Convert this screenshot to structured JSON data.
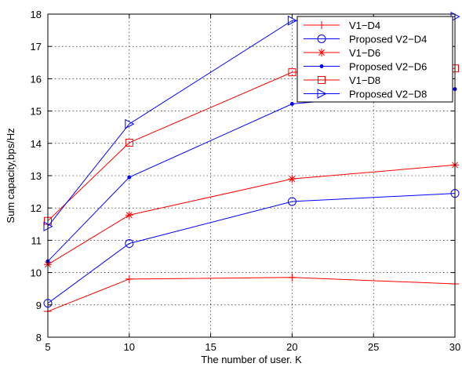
{
  "chart_data": {
    "type": "line",
    "title": "",
    "xlabel": "The number of user. K",
    "ylabel": "Sum capacity,bps/Hz",
    "xlim": [
      5,
      30
    ],
    "ylim": [
      8,
      18
    ],
    "xticks": [
      5,
      10,
      15,
      20,
      25,
      30
    ],
    "yticks": [
      8,
      9,
      10,
      11,
      12,
      13,
      14,
      15,
      16,
      17,
      18
    ],
    "grid": true,
    "legend_position": "top-right",
    "x": [
      5,
      10,
      20,
      30
    ],
    "series": [
      {
        "name": "V1−D4",
        "color": "#ff0000",
        "marker": "plus",
        "values": [
          8.8,
          9.8,
          9.85,
          9.65
        ]
      },
      {
        "name": "Proposed V2−D4",
        "color": "#0000ff",
        "marker": "circle",
        "values": [
          9.05,
          10.9,
          12.2,
          12.45
        ]
      },
      {
        "name": "V1−D6",
        "color": "#ff0000",
        "marker": "asterisk",
        "values": [
          10.25,
          11.78,
          12.9,
          13.33
        ]
      },
      {
        "name": "Proposed V2−D6",
        "color": "#0000ff",
        "marker": "dot",
        "values": [
          10.35,
          12.95,
          15.22,
          15.68
        ]
      },
      {
        "name": "V1−D8",
        "color": "#ff0000",
        "marker": "square",
        "values": [
          11.6,
          14.02,
          16.2,
          16.32
        ]
      },
      {
        "name": "Proposed V2−D8",
        "color": "#0000ff",
        "marker": "triangle-right",
        "values": [
          11.43,
          14.6,
          17.8,
          17.92
        ]
      }
    ]
  }
}
